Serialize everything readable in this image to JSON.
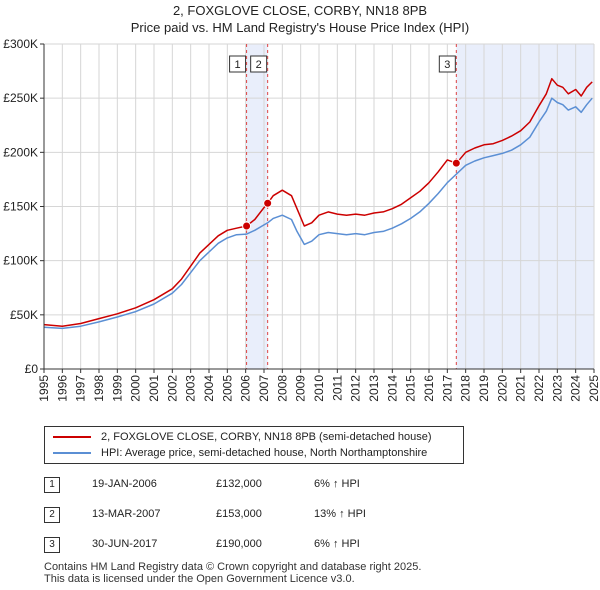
{
  "chart_data": {
    "type": "line",
    "title": "2, FOXGLOVE CLOSE, CORBY, NN18 8PB",
    "subtitle": "Price paid vs. HM Land Registry's House Price Index (HPI)",
    "xlabel": "",
    "ylabel": "",
    "xlim": [
      1995,
      2025
    ],
    "ylim": [
      0,
      300000
    ],
    "y_ticks": [
      0,
      50000,
      100000,
      150000,
      200000,
      250000,
      300000
    ],
    "y_tick_labels": [
      "£0",
      "£50K",
      "£100K",
      "£150K",
      "£200K",
      "£250K",
      "£300K"
    ],
    "x_ticks": [
      1995,
      1996,
      1997,
      1998,
      1999,
      2000,
      2001,
      2002,
      2003,
      2004,
      2005,
      2006,
      2007,
      2008,
      2009,
      2010,
      2011,
      2012,
      2013,
      2014,
      2015,
      2016,
      2017,
      2018,
      2019,
      2020,
      2021,
      2022,
      2023,
      2024,
      2025
    ],
    "x_tick_labels": [
      "1995",
      "1996",
      "1997",
      "1998",
      "1999",
      "2000",
      "2001",
      "2002",
      "2003",
      "2004",
      "2005",
      "2006",
      "2007",
      "2008",
      "2009",
      "2010",
      "2011",
      "2012",
      "2013",
      "2014",
      "2015",
      "2016",
      "2017",
      "2018",
      "2019",
      "2020",
      "2021",
      "2022",
      "2023",
      "2024",
      "2025"
    ],
    "grid": true,
    "series": [
      {
        "name": "2, FOXGLOVE CLOSE, CORBY, NN18 8PB (semi-detached house)",
        "color": "#cc0000",
        "points": [
          [
            1995.0,
            41000
          ],
          [
            1996.0,
            39500
          ],
          [
            1997.0,
            42000
          ],
          [
            1998.0,
            46500
          ],
          [
            1999.0,
            51000
          ],
          [
            2000.0,
            56500
          ],
          [
            2001.0,
            64000
          ],
          [
            2002.0,
            74000
          ],
          [
            2002.5,
            83000
          ],
          [
            2003.0,
            95000
          ],
          [
            2003.5,
            107000
          ],
          [
            2004.0,
            115000
          ],
          [
            2004.5,
            123000
          ],
          [
            2005.0,
            128000
          ],
          [
            2005.5,
            130000
          ],
          [
            2006.05,
            132000
          ],
          [
            2006.5,
            138000
          ],
          [
            2007.0,
            149000
          ],
          [
            2007.2,
            153000
          ],
          [
            2007.5,
            160000
          ],
          [
            2008.0,
            165000
          ],
          [
            2008.5,
            160000
          ],
          [
            2008.8,
            148000
          ],
          [
            2009.2,
            132000
          ],
          [
            2009.6,
            135000
          ],
          [
            2010.0,
            142000
          ],
          [
            2010.5,
            145000
          ],
          [
            2011.0,
            143000
          ],
          [
            2011.5,
            142000
          ],
          [
            2012.0,
            143000
          ],
          [
            2012.5,
            142000
          ],
          [
            2013.0,
            144000
          ],
          [
            2013.5,
            145000
          ],
          [
            2014.0,
            148000
          ],
          [
            2014.5,
            152000
          ],
          [
            2015.0,
            158000
          ],
          [
            2015.5,
            164000
          ],
          [
            2016.0,
            172000
          ],
          [
            2016.5,
            182000
          ],
          [
            2017.0,
            193000
          ],
          [
            2017.5,
            190000
          ],
          [
            2018.0,
            200000
          ],
          [
            2018.5,
            204000
          ],
          [
            2019.0,
            207000
          ],
          [
            2019.5,
            208000
          ],
          [
            2020.0,
            211000
          ],
          [
            2020.5,
            215000
          ],
          [
            2021.0,
            220000
          ],
          [
            2021.5,
            228000
          ],
          [
            2022.0,
            243000
          ],
          [
            2022.4,
            254000
          ],
          [
            2022.7,
            268000
          ],
          [
            2023.0,
            262000
          ],
          [
            2023.3,
            260000
          ],
          [
            2023.6,
            254000
          ],
          [
            2024.0,
            258000
          ],
          [
            2024.3,
            252000
          ],
          [
            2024.6,
            260000
          ],
          [
            2024.9,
            265000
          ]
        ]
      },
      {
        "name": "HPI: Average price, semi-detached house, North Northamptonshire",
        "color": "#5b8fd4",
        "points": [
          [
            1995.0,
            38500
          ],
          [
            1996.0,
            37500
          ],
          [
            1997.0,
            39500
          ],
          [
            1998.0,
            43500
          ],
          [
            1999.0,
            48000
          ],
          [
            2000.0,
            53000
          ],
          [
            2001.0,
            60000
          ],
          [
            2002.0,
            70000
          ],
          [
            2002.5,
            78000
          ],
          [
            2003.0,
            89000
          ],
          [
            2003.5,
            100000
          ],
          [
            2004.0,
            108000
          ],
          [
            2004.5,
            116000
          ],
          [
            2005.0,
            121000
          ],
          [
            2005.5,
            124000
          ],
          [
            2006.05,
            124500
          ],
          [
            2006.5,
            128000
          ],
          [
            2007.0,
            133000
          ],
          [
            2007.2,
            135000
          ],
          [
            2007.5,
            139000
          ],
          [
            2008.0,
            142000
          ],
          [
            2008.5,
            138000
          ],
          [
            2008.8,
            127000
          ],
          [
            2009.2,
            115000
          ],
          [
            2009.6,
            118000
          ],
          [
            2010.0,
            124000
          ],
          [
            2010.5,
            126000
          ],
          [
            2011.0,
            125000
          ],
          [
            2011.5,
            124000
          ],
          [
            2012.0,
            125000
          ],
          [
            2012.5,
            124000
          ],
          [
            2013.0,
            126000
          ],
          [
            2013.5,
            127000
          ],
          [
            2014.0,
            130000
          ],
          [
            2014.5,
            134000
          ],
          [
            2015.0,
            139000
          ],
          [
            2015.5,
            145000
          ],
          [
            2016.0,
            153000
          ],
          [
            2016.5,
            162000
          ],
          [
            2017.0,
            172000
          ],
          [
            2017.5,
            180000
          ],
          [
            2018.0,
            188000
          ],
          [
            2018.5,
            192000
          ],
          [
            2019.0,
            195000
          ],
          [
            2019.5,
            197000
          ],
          [
            2020.0,
            199000
          ],
          [
            2020.5,
            202000
          ],
          [
            2021.0,
            207000
          ],
          [
            2021.5,
            214000
          ],
          [
            2022.0,
            228000
          ],
          [
            2022.4,
            238000
          ],
          [
            2022.7,
            250000
          ],
          [
            2023.0,
            246000
          ],
          [
            2023.3,
            244000
          ],
          [
            2023.6,
            239000
          ],
          [
            2024.0,
            242000
          ],
          [
            2024.3,
            237000
          ],
          [
            2024.6,
            244000
          ],
          [
            2024.9,
            250000
          ]
        ]
      }
    ],
    "sales": [
      {
        "label": "1",
        "x": 2006.05,
        "y": 132000
      },
      {
        "label": "2",
        "x": 2007.2,
        "y": 153000
      },
      {
        "label": "3",
        "x": 2017.49,
        "y": 190000
      }
    ],
    "shaded_spans": [
      [
        2006.05,
        2007.2
      ],
      [
        2017.49,
        2025.0
      ]
    ]
  },
  "legend": {
    "property_label": "2, FOXGLOVE CLOSE, CORBY, NN18 8PB (semi-detached house)",
    "hpi_label": "HPI: Average price, semi-detached house, North Northamptonshire",
    "property_color": "#cc0000",
    "hpi_color": "#5b8fd4"
  },
  "transactions": [
    {
      "num": "1",
      "date": "19-JAN-2006",
      "price": "£132,000",
      "hpi": "6% ↑ HPI"
    },
    {
      "num": "2",
      "date": "13-MAR-2007",
      "price": "£153,000",
      "hpi": "13% ↑ HPI"
    },
    {
      "num": "3",
      "date": "30-JUN-2017",
      "price": "£190,000",
      "hpi": "6% ↑ HPI"
    }
  ],
  "footer": {
    "line1": "Contains HM Land Registry data © Crown copyright and database right 2025.",
    "line2": "This data is licensed under the Open Government Licence v3.0."
  }
}
